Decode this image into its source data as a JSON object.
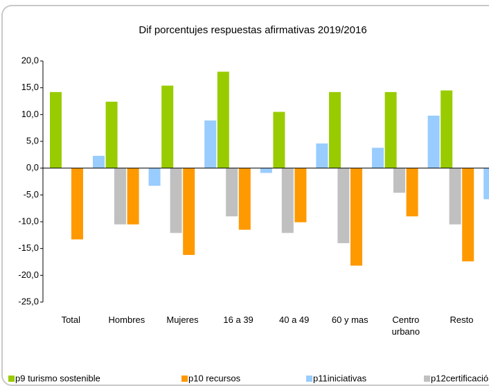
{
  "chart_data": {
    "type": "bar",
    "title": "Dif porcentujes respuestas afirmativas 2019/2016",
    "categories": [
      "Total",
      "Hombres",
      "Mujeres",
      "16 a 39",
      "40 a 49",
      "60 y mas",
      "Centro urbano",
      "Resto"
    ],
    "series": [
      {
        "name": "p9 turismo sostenible",
        "color": "#99cc00",
        "values": [
          14.2,
          12.4,
          15.4,
          18.0,
          10.5,
          14.2,
          14.2,
          14.5
        ]
      },
      {
        "name": "p10 recursos",
        "color": "#ff9900",
        "values": [
          -13.3,
          -10.5,
          -16.2,
          -11.5,
          -10.1,
          -18.2,
          -9.0,
          -17.4
        ]
      },
      {
        "name": "p11iniciativas",
        "color": "#99ccff",
        "values": [
          2.3,
          -3.3,
          8.9,
          -0.9,
          4.6,
          3.8,
          9.8,
          -5.8
        ]
      },
      {
        "name": "p12certificación",
        "color": "#c0c0c0",
        "values": [
          -10.5,
          -12.1,
          -9.0,
          -12.1,
          -14.0,
          -4.6,
          -10.5,
          -10.3
        ]
      }
    ],
    "ylim": [
      -25,
      20
    ],
    "yticks": [
      {
        "value": 20,
        "label": "20,0"
      },
      {
        "value": 15,
        "label": "15,0"
      },
      {
        "value": 10,
        "label": "10,0"
      },
      {
        "value": 5,
        "label": "5,0"
      },
      {
        "value": 0,
        "label": "0,0"
      },
      {
        "value": -5,
        "label": "-5,0"
      },
      {
        "value": -10,
        "label": "-10,0"
      },
      {
        "value": -15,
        "label": "-15,0"
      },
      {
        "value": -20,
        "label": "-20,0"
      },
      {
        "value": -25,
        "label": "-25,0"
      }
    ],
    "legend": "bottom"
  }
}
